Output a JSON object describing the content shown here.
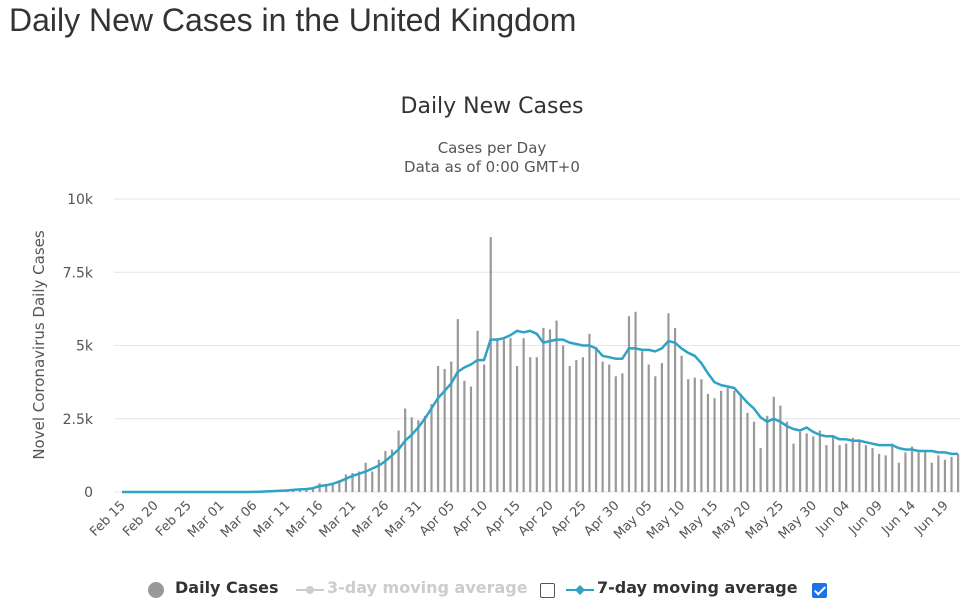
{
  "page": {
    "title": "Daily New Cases in the United Kingdom"
  },
  "chart_data": {
    "type": "bar",
    "title": "Daily New Cases",
    "subtitle_lines": [
      "Cases per Day",
      "Data as of 0:00 GMT+0"
    ],
    "ylabel": "Novel Coronavirus Daily Cases",
    "xlabel": "",
    "ylim": [
      0,
      10000
    ],
    "yticks": [
      {
        "value": 0,
        "label": "0"
      },
      {
        "value": 2500,
        "label": "2.5k"
      },
      {
        "value": 5000,
        "label": "5k"
      },
      {
        "value": 7500,
        "label": "7.5k"
      },
      {
        "value": 10000,
        "label": "10k"
      }
    ],
    "grid": true,
    "start_date": "Feb 15",
    "xticks": [
      {
        "index": 0,
        "label": "Feb 15"
      },
      {
        "index": 5,
        "label": "Feb 20"
      },
      {
        "index": 10,
        "label": "Feb 25"
      },
      {
        "index": 15,
        "label": "Mar 01"
      },
      {
        "index": 20,
        "label": "Mar 06"
      },
      {
        "index": 25,
        "label": "Mar 11"
      },
      {
        "index": 30,
        "label": "Mar 16"
      },
      {
        "index": 35,
        "label": "Mar 21"
      },
      {
        "index": 40,
        "label": "Mar 26"
      },
      {
        "index": 45,
        "label": "Mar 31"
      },
      {
        "index": 50,
        "label": "Apr 05"
      },
      {
        "index": 55,
        "label": "Apr 10"
      },
      {
        "index": 60,
        "label": "Apr 15"
      },
      {
        "index": 65,
        "label": "Apr 20"
      },
      {
        "index": 70,
        "label": "Apr 25"
      },
      {
        "index": 75,
        "label": "Apr 30"
      },
      {
        "index": 80,
        "label": "May 05"
      },
      {
        "index": 85,
        "label": "May 10"
      },
      {
        "index": 90,
        "label": "May 15"
      },
      {
        "index": 95,
        "label": "May 20"
      },
      {
        "index": 100,
        "label": "May 25"
      },
      {
        "index": 105,
        "label": "May 30"
      },
      {
        "index": 110,
        "label": "Jun 04"
      },
      {
        "index": 115,
        "label": "Jun 09"
      },
      {
        "index": 120,
        "label": "Jun 14"
      },
      {
        "index": 125,
        "label": "Jun 19"
      }
    ],
    "series": [
      {
        "name": "Daily Cases",
        "kind": "bar",
        "color": "#999999",
        "values": [
          0,
          0,
          0,
          0,
          0,
          0,
          0,
          0,
          0,
          0,
          0,
          0,
          0,
          0,
          0,
          0,
          0,
          0,
          0,
          0,
          30,
          20,
          40,
          50,
          60,
          50,
          80,
          110,
          120,
          140,
          300,
          200,
          250,
          400,
          600,
          650,
          700,
          1000,
          700,
          1100,
          1400,
          1450,
          2100,
          2850,
          2550,
          2450,
          2600,
          3000,
          4300,
          4200,
          4450,
          5900,
          3800,
          3600,
          5500,
          4350,
          8700,
          5250,
          5200,
          5250,
          4300,
          5250,
          4600,
          4600,
          5600,
          5550,
          5850,
          5000,
          4300,
          4500,
          4600,
          5400,
          4950,
          4450,
          4350,
          3950,
          4050,
          6000,
          6150,
          4800,
          4350,
          3950,
          4400,
          6100,
          5600,
          4650,
          3850,
          3900,
          3850,
          3350,
          3200,
          3450,
          3550,
          3450,
          3350,
          2700,
          2400,
          1500,
          2600,
          3250,
          2950,
          2400,
          1650,
          2050,
          2000,
          1900,
          2100,
          1600,
          1900,
          1600,
          1650,
          1850,
          1800,
          1600,
          1500,
          1300,
          1250,
          1650,
          1000,
          1350,
          1550,
          1350,
          1400,
          1000,
          1250,
          1100,
          1200,
          1300
        ]
      },
      {
        "name": "3-day moving average",
        "kind": "line",
        "color": "#cccccc",
        "visible": false,
        "checked": false
      },
      {
        "name": "7-day moving average",
        "kind": "line",
        "color": "#2ea3c5",
        "visible": true,
        "checked": true,
        "values": [
          0,
          0,
          0,
          0,
          0,
          0,
          0,
          0,
          0,
          0,
          0,
          0,
          0,
          0,
          0,
          0,
          0,
          0,
          0,
          0,
          5,
          10,
          20,
          30,
          40,
          50,
          70,
          90,
          100,
          130,
          200,
          230,
          280,
          350,
          450,
          550,
          620,
          700,
          800,
          900,
          1050,
          1250,
          1450,
          1750,
          1950,
          2200,
          2500,
          2850,
          3200,
          3450,
          3700,
          4100,
          4250,
          4350,
          4500,
          4500,
          5200,
          5200,
          5250,
          5350,
          5500,
          5450,
          5500,
          5400,
          5100,
          5150,
          5200,
          5200,
          5100,
          5050,
          5000,
          5000,
          4900,
          4650,
          4600,
          4550,
          4550,
          4900,
          4900,
          4850,
          4850,
          4800,
          4900,
          5150,
          5100,
          4900,
          4750,
          4650,
          4400,
          4050,
          3750,
          3650,
          3600,
          3550,
          3300,
          3050,
          2850,
          2550,
          2400,
          2500,
          2400,
          2250,
          2150,
          2100,
          2200,
          2050,
          1950,
          1900,
          1900,
          1800,
          1800,
          1750,
          1750,
          1700,
          1650,
          1600,
          1600,
          1600,
          1500,
          1450,
          1450,
          1400,
          1400,
          1400,
          1350,
          1350,
          1300,
          1300
        ]
      }
    ]
  },
  "legend": {
    "items": [
      {
        "label": "Daily Cases",
        "state": "on"
      },
      {
        "label": "3-day moving average",
        "state": "dim"
      },
      {
        "label": "7-day moving average",
        "state": "on"
      }
    ]
  }
}
